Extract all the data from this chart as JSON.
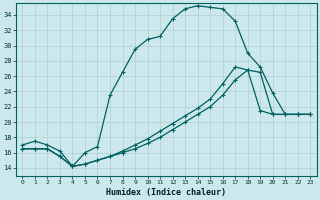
{
  "xlabel": "Humidex (Indice chaleur)",
  "bg_color": "#cce8ec",
  "line_color": "#006060",
  "grid_color": "#b0d0d4",
  "xlim_min": -0.5,
  "xlim_max": 23.5,
  "ylim_min": 13,
  "ylim_max": 35.5,
  "xticks": [
    0,
    1,
    2,
    3,
    4,
    5,
    6,
    7,
    8,
    9,
    10,
    11,
    12,
    13,
    14,
    15,
    16,
    17,
    18,
    19,
    20,
    21,
    22,
    23
  ],
  "yticks": [
    14,
    16,
    18,
    20,
    22,
    24,
    26,
    28,
    30,
    32,
    34
  ],
  "line1_x": [
    0,
    1,
    2,
    3,
    4,
    5,
    6,
    7,
    8,
    9,
    10,
    11,
    12,
    13,
    14,
    15,
    16,
    17,
    18,
    19,
    20,
    21,
    22,
    23
  ],
  "line1_y": [
    17.0,
    17.5,
    17.0,
    16.2,
    14.2,
    16.0,
    16.8,
    23.5,
    26.5,
    29.5,
    30.8,
    31.2,
    33.5,
    34.8,
    35.2,
    35.0,
    34.8,
    33.2,
    29.0,
    27.2,
    23.8,
    21.0,
    21.0,
    21.0
  ],
  "line2_x": [
    0,
    1,
    2,
    3,
    4,
    5,
    6,
    7,
    8,
    9,
    10,
    11,
    12,
    13,
    14,
    15,
    16,
    17,
    18,
    19,
    20,
    21,
    22,
    23
  ],
  "line2_y": [
    16.5,
    16.5,
    16.5,
    15.5,
    14.2,
    14.5,
    15.0,
    15.5,
    16.0,
    16.5,
    17.2,
    18.0,
    19.0,
    20.0,
    21.0,
    22.0,
    23.5,
    25.5,
    26.8,
    26.5,
    21.0,
    21.0,
    21.0,
    21.0
  ],
  "line3_x": [
    0,
    1,
    2,
    3,
    4,
    5,
    6,
    7,
    8,
    9,
    10,
    11,
    12,
    13,
    14,
    15,
    16,
    17,
    18,
    19,
    20,
    21,
    22,
    23
  ],
  "line3_y": [
    16.5,
    16.5,
    16.5,
    15.5,
    14.2,
    14.5,
    15.0,
    15.5,
    16.2,
    17.0,
    17.8,
    18.8,
    19.8,
    20.8,
    21.8,
    23.0,
    25.0,
    27.2,
    26.8,
    21.5,
    21.0,
    21.0,
    21.0,
    21.0
  ]
}
